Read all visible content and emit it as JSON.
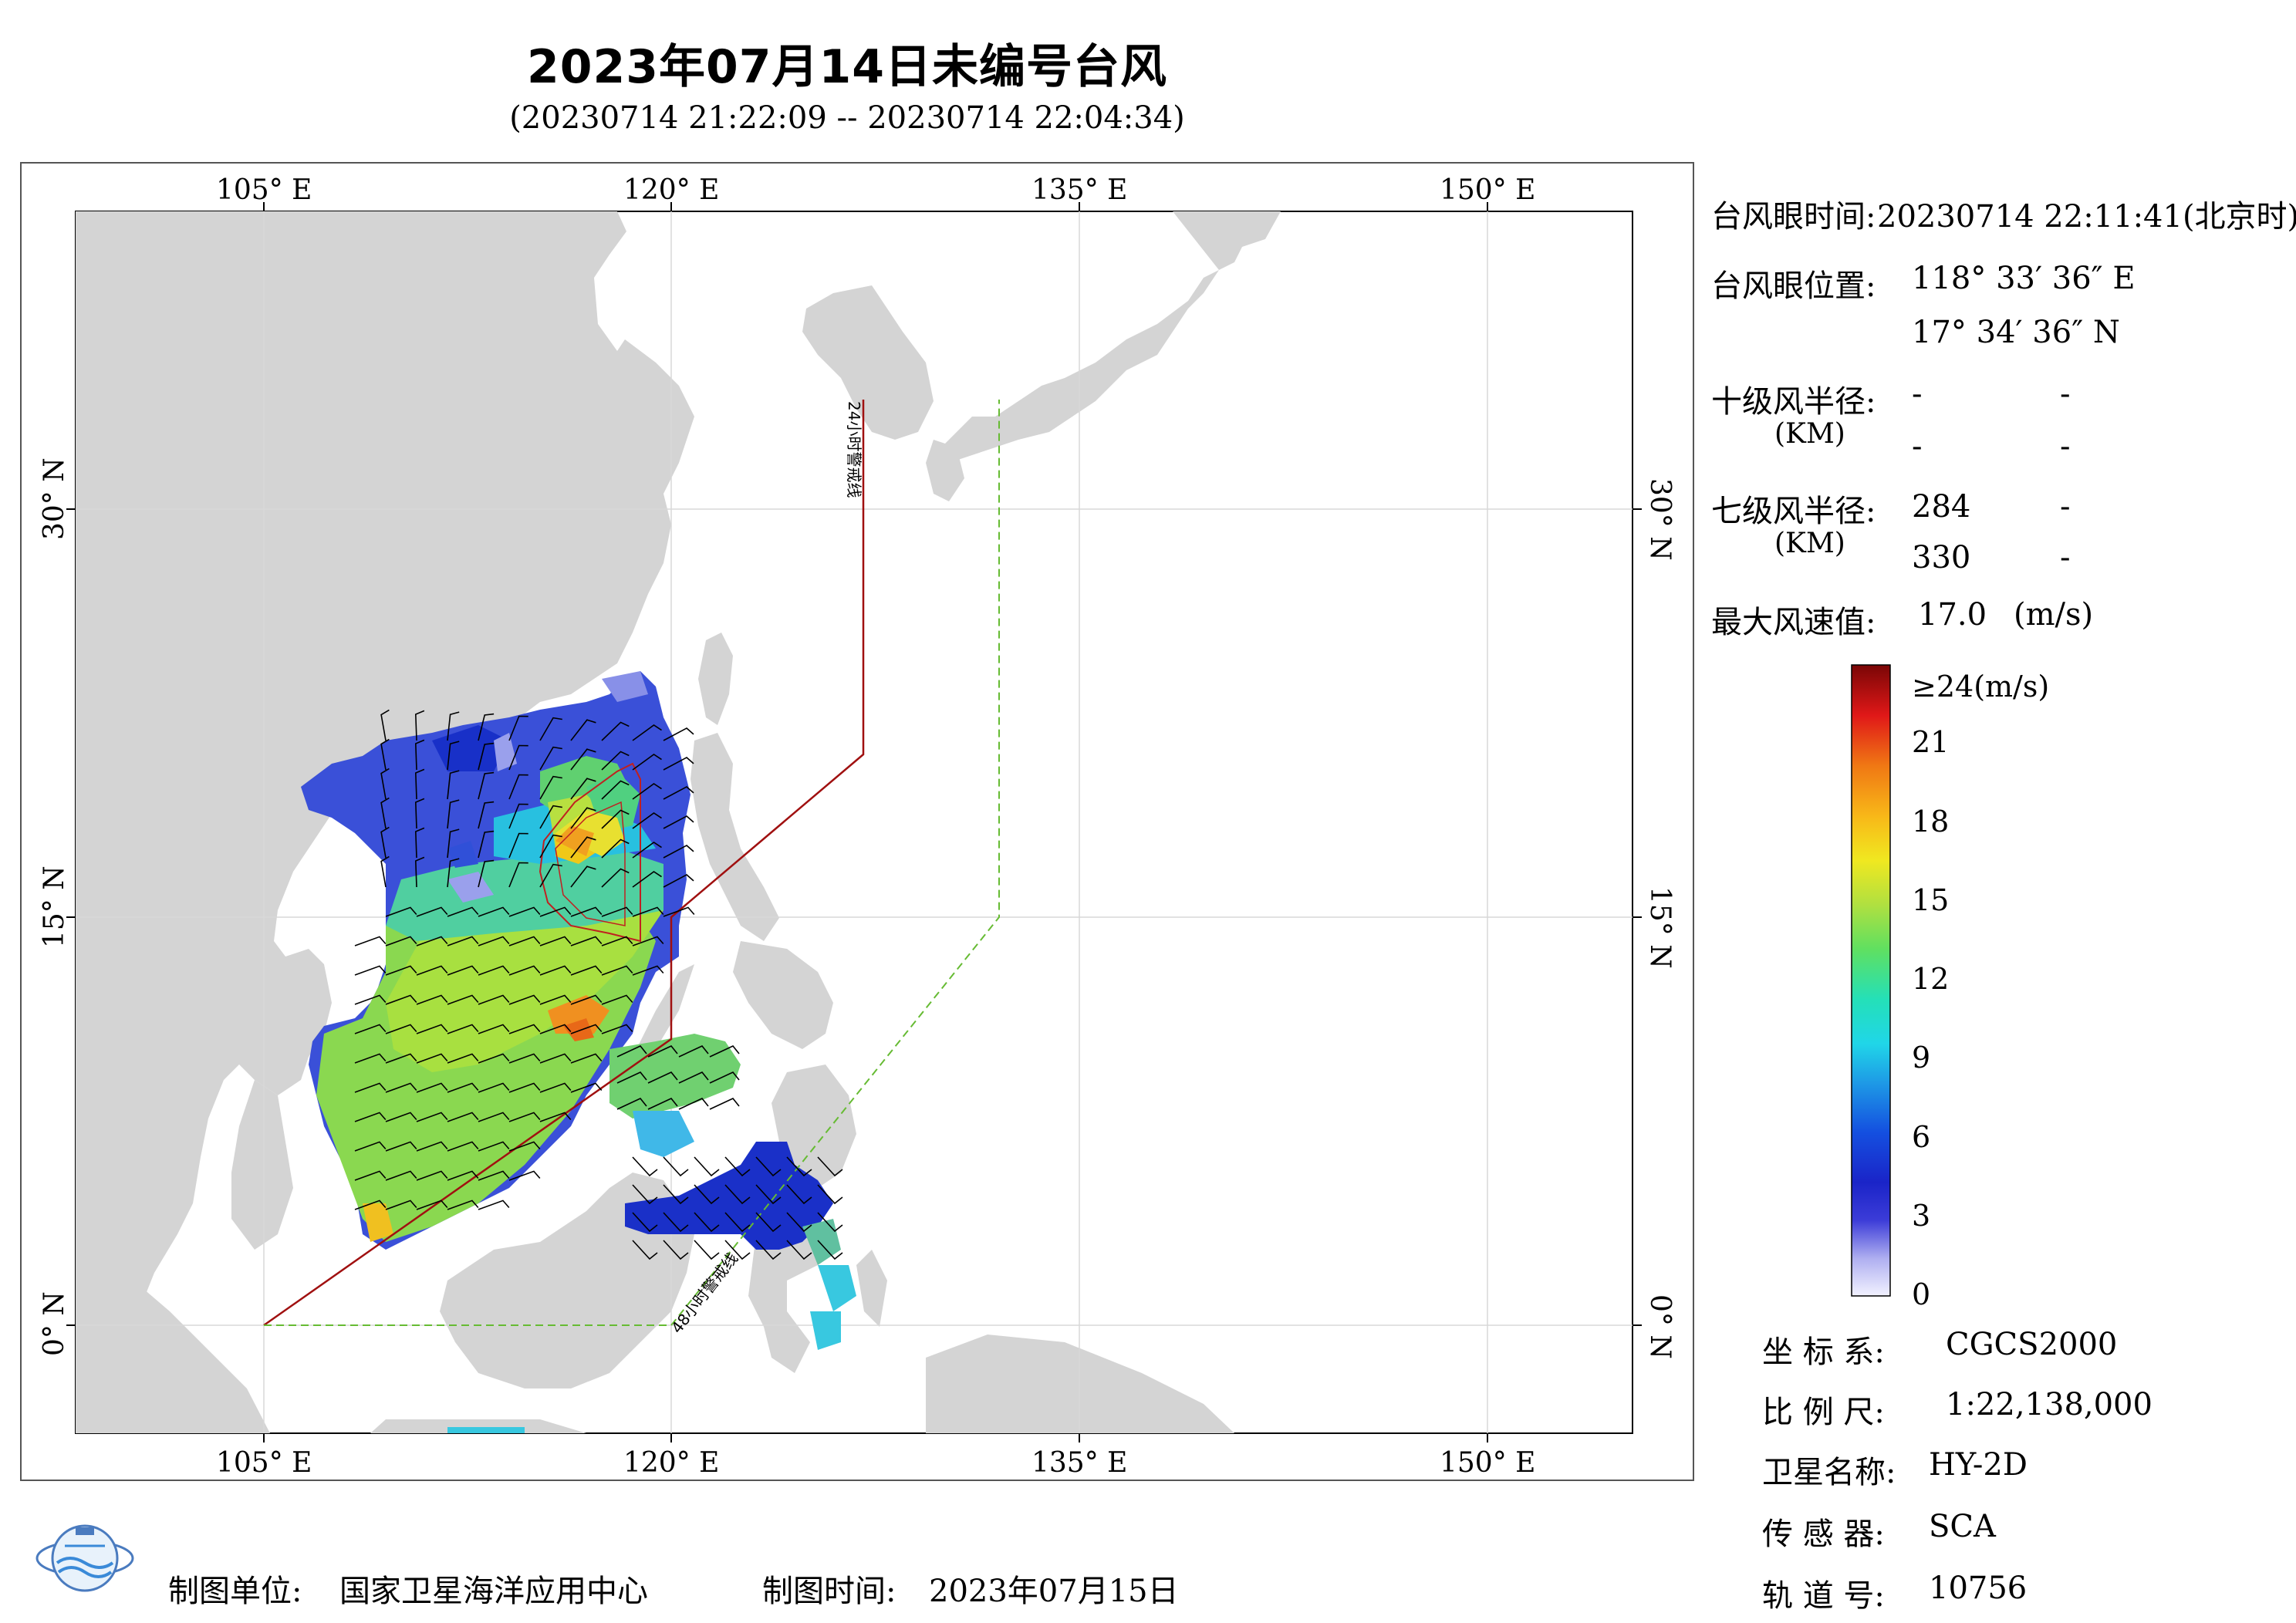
{
  "header": {
    "title": "2023年07月14日未编号台风",
    "subtitle": "(20230714 21:22:09 -- 20230714 22:04:34)"
  },
  "map": {
    "lon_labels": [
      "105° E",
      "120° E",
      "135° E",
      "150° E"
    ],
    "lat_labels": [
      "30° N",
      "15° N",
      "0° N"
    ],
    "warning_line_24h": "24小时警戒线",
    "warning_line_48h": "48小时警戒线",
    "colors": {
      "land": "#d4d4d4",
      "ocean": "#ffffff",
      "warning_24h": "#a01010",
      "warning_48h": "#66bb33"
    }
  },
  "info": {
    "eye_time_label": "台风眼时间:",
    "eye_time_value": "20230714 22:11:41(北京时)",
    "eye_pos_label": "台风眼位置:",
    "eye_lon": "118° 33′ 36″ E",
    "eye_lat": "17° 34′ 36″ N",
    "r10_label": "十级风半径:",
    "r10_unit": "(KM)",
    "r10_values": [
      [
        "-",
        "-"
      ],
      [
        "-",
        "-"
      ]
    ],
    "r7_label": "七级风半径:",
    "r7_unit": "(KM)",
    "r7_values": [
      [
        "284",
        "-"
      ],
      [
        "330",
        "-"
      ]
    ],
    "max_wind_label": "最大风速值:",
    "max_wind_value": "17.0",
    "max_wind_unit": "(m/s)"
  },
  "legend": {
    "ticks": [
      "≥24(m/s)",
      "21",
      "18",
      "15",
      "12",
      "9",
      "6",
      "3",
      "0"
    ],
    "tick_values": [
      24,
      21,
      18,
      15,
      12,
      9,
      6,
      3,
      0
    ]
  },
  "meta": {
    "crs_label": "坐 标 系:",
    "crs_value": "CGCS2000",
    "scale_label": "比 例 尺:",
    "scale_value": "1:22,138,000",
    "satellite_label": "卫星名称:",
    "satellite_value": "HY-2D",
    "sensor_label": "传 感 器:",
    "sensor_value": "SCA",
    "orbit_label": "轨 道 号:",
    "orbit_value": "10756"
  },
  "footer": {
    "producer_label": "制图单位:",
    "producer_value": "国家卫星海洋应用中心",
    "date_label": "制图时间:",
    "date_value": "2023年07月15日"
  }
}
